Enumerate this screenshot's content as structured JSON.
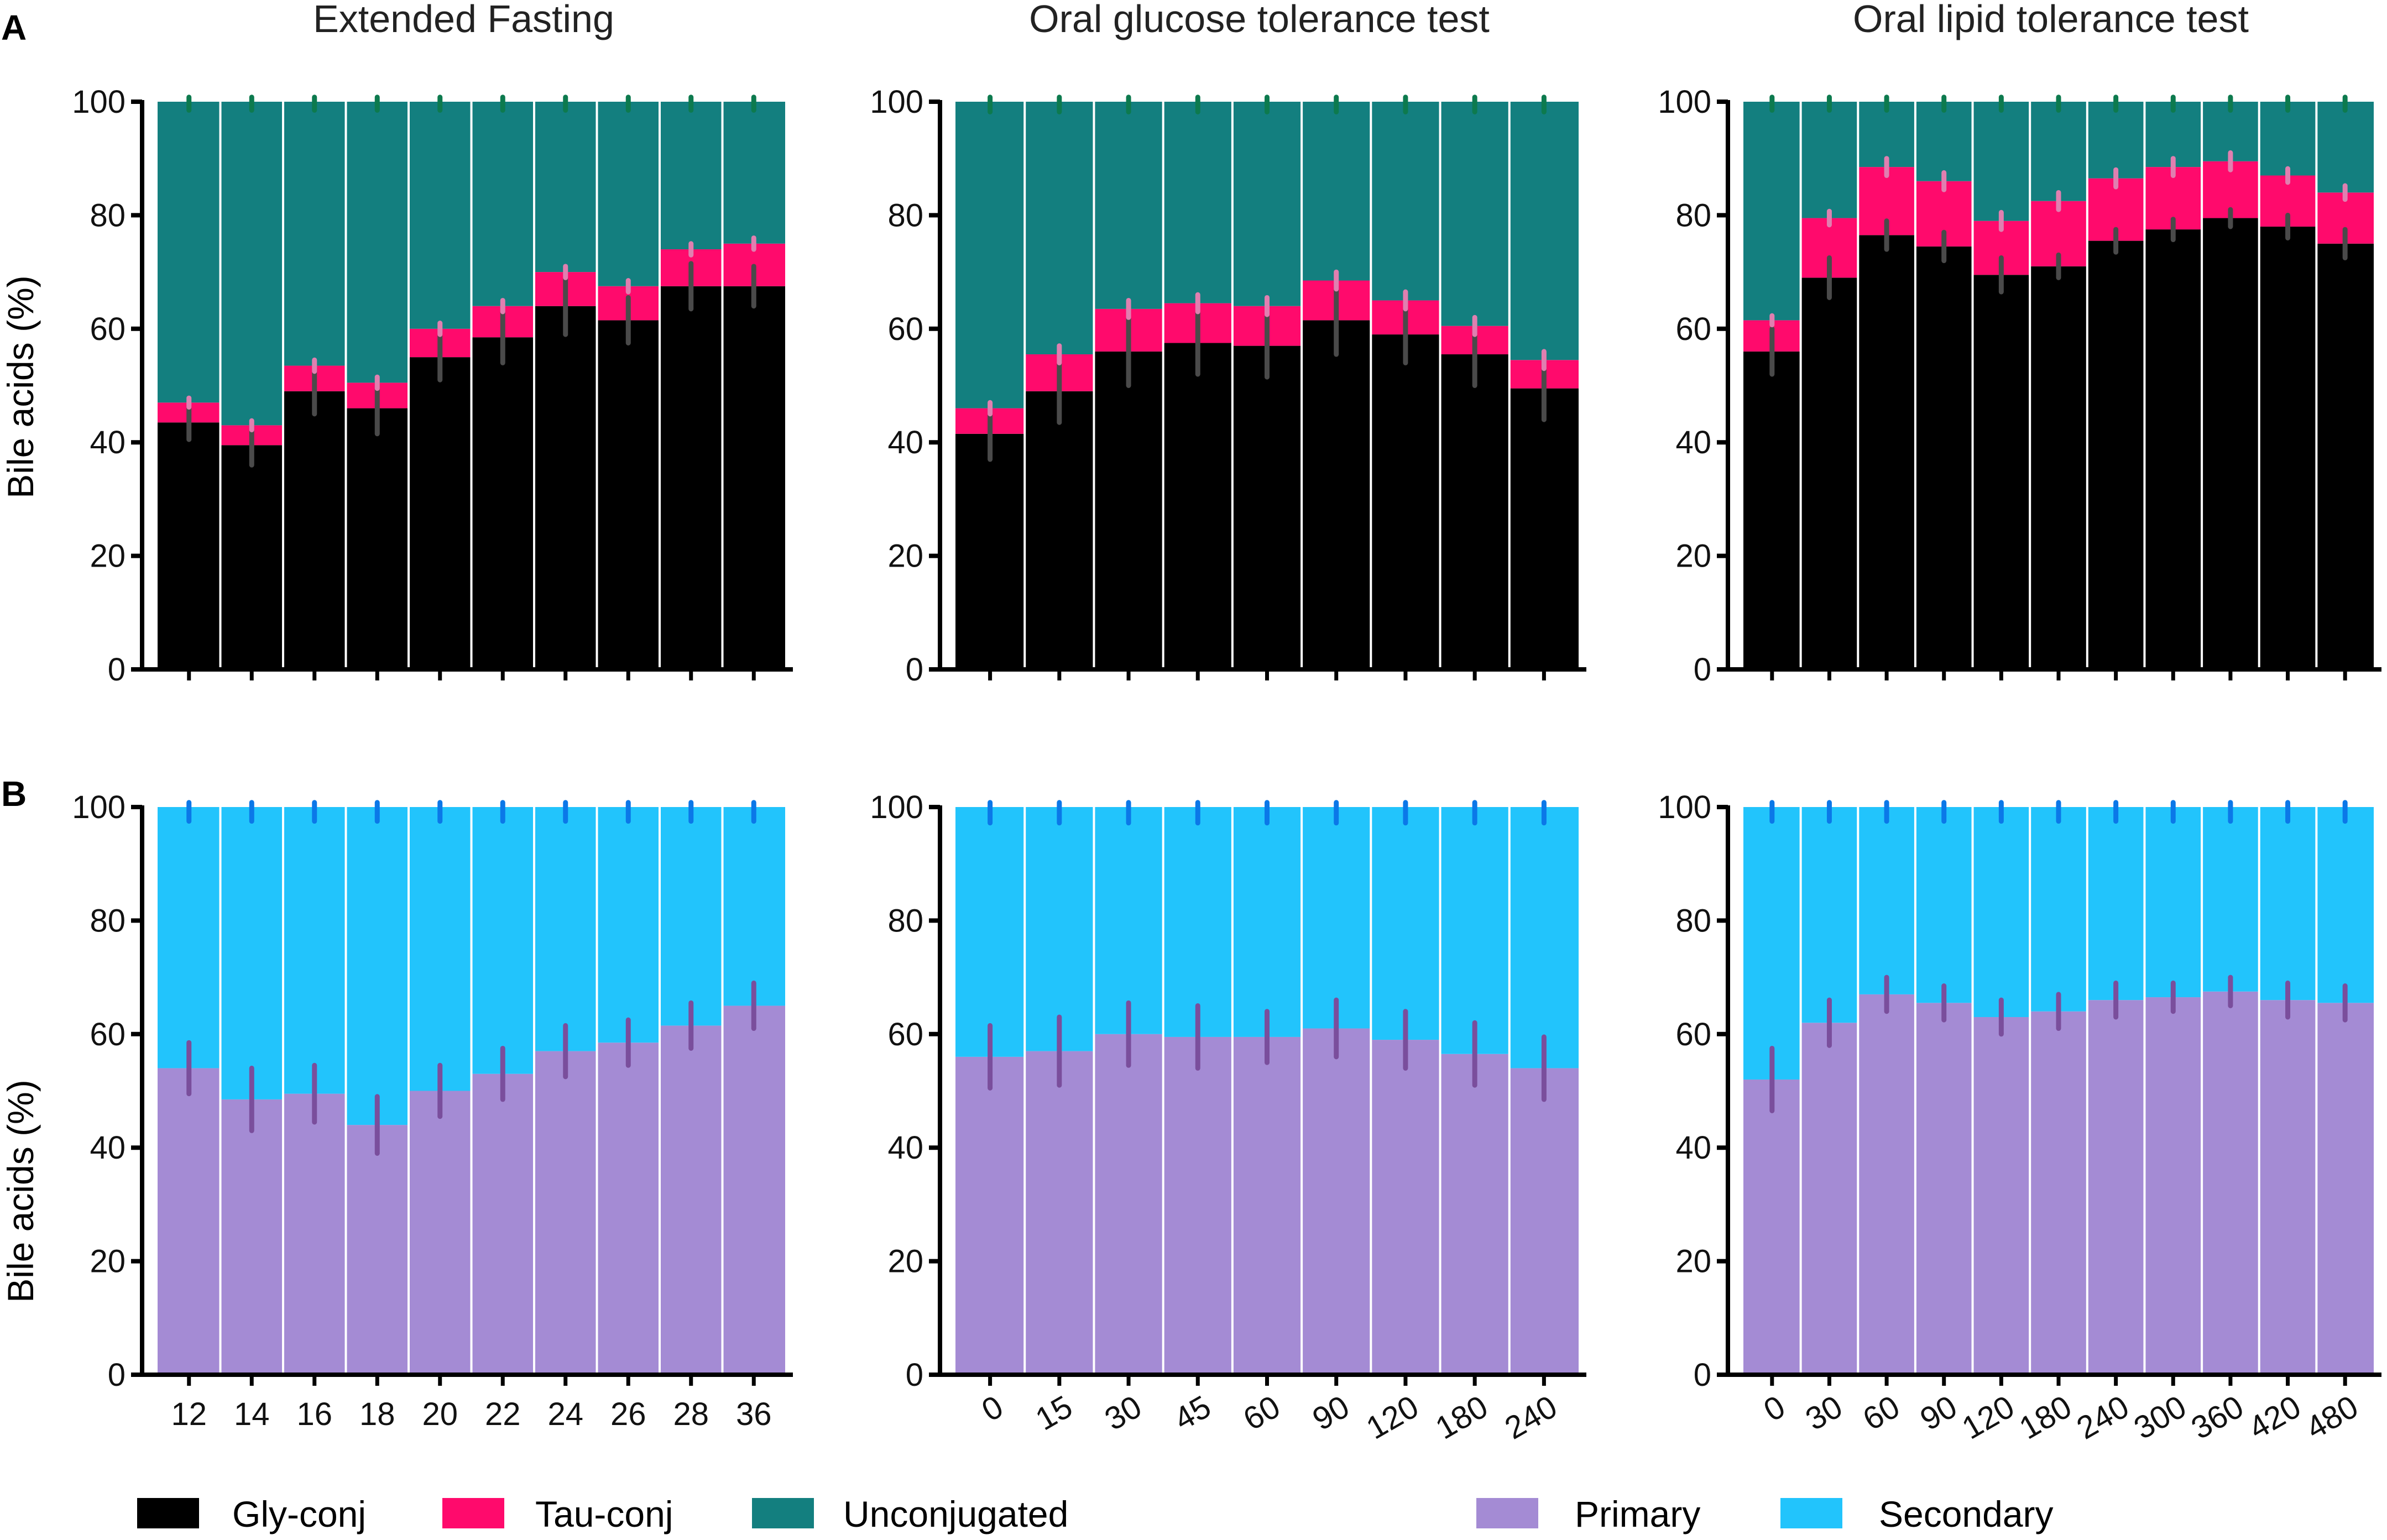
{
  "figure": {
    "panel_labels": [
      "A",
      "B"
    ],
    "row_ylabel": "Bile acids (%)",
    "legends": {
      "conjugation": [
        "Gly-conj",
        "Tau-conj",
        "Unconjugated"
      ],
      "origin": [
        "Primary",
        "Secondary"
      ]
    }
  },
  "colors": {
    "gly": "#000000",
    "tau": "#ff0a6c",
    "unconj": "#137f7f",
    "primary": "#a48bd4",
    "secondary": "#22c4fc",
    "err_gly": "#4a4a4a",
    "err_tau": "#e07fb0",
    "err_unconj": "#0d7a4e",
    "err_primary": "#7a4e9c",
    "err_secondary": "#0b78e8"
  },
  "chart_data": [
    {
      "type": "bar",
      "stacked": true,
      "row": "A",
      "title": "Extended Fasting",
      "ylabel": "Bile acids (%)",
      "ylim": [
        0,
        100
      ],
      "yticks": [
        "0",
        "20",
        "40",
        "60",
        "80",
        "100"
      ],
      "categories": [
        "12",
        "14",
        "16",
        "18",
        "20",
        "22",
        "24",
        "26",
        "28",
        "36"
      ],
      "series": [
        {
          "name": "Gly-conj",
          "values": [
            43.5,
            39.5,
            49,
            46,
            55,
            58.5,
            64,
            61.5,
            67.5,
            67.5
          ],
          "error": [
            3,
            3.5,
            4,
            4.5,
            4,
            4.5,
            5,
            4,
            4,
            3.5
          ]
        },
        {
          "name": "Tau-conj",
          "values": [
            3.5,
            3.5,
            4.5,
            4.5,
            5,
            5.5,
            6,
            6,
            6.5,
            7.5
          ],
          "error": [
            0.8,
            0.8,
            1,
            1,
            1,
            1,
            1,
            1,
            1,
            1
          ]
        },
        {
          "name": "Unconjugated",
          "values": [
            53,
            57,
            46.5,
            49.5,
            40,
            36,
            30,
            32.5,
            26,
            25
          ],
          "error": [
            1.5,
            1.5,
            1.5,
            1.5,
            1.5,
            1.5,
            1.5,
            1.5,
            1.5,
            1.5
          ]
        }
      ]
    },
    {
      "type": "bar",
      "stacked": true,
      "row": "A",
      "title": "Oral glucose tolerance test",
      "ylabel": "Bile acids (%)",
      "ylim": [
        0,
        100
      ],
      "yticks": [
        "0",
        "20",
        "40",
        "60",
        "80",
        "100"
      ],
      "categories": [
        "0",
        "15",
        "30",
        "45",
        "60",
        "90",
        "120",
        "180",
        "240"
      ],
      "series": [
        {
          "name": "Gly-conj",
          "values": [
            41.5,
            49,
            56,
            57.5,
            57,
            61.5,
            59,
            55.5,
            49.5
          ],
          "error": [
            4.5,
            5.5,
            6,
            5.5,
            5.5,
            6,
            5,
            5.5,
            5.5
          ]
        },
        {
          "name": "Tau-conj",
          "values": [
            4.5,
            6.5,
            7.5,
            7,
            7,
            7,
            6,
            5,
            5
          ],
          "error": [
            1,
            1.5,
            1.5,
            1.5,
            1.5,
            1.5,
            1.5,
            1.5,
            1.5
          ]
        },
        {
          "name": "Unconjugated",
          "values": [
            54,
            44.5,
            36.5,
            35.5,
            36,
            31.5,
            35,
            39.5,
            45.5
          ],
          "error": [
            1.8,
            1.8,
            1.8,
            1.8,
            1.8,
            1.8,
            1.8,
            1.8,
            1.8
          ]
        }
      ]
    },
    {
      "type": "bar",
      "stacked": true,
      "row": "A",
      "title": "Oral lipid tolerance test",
      "ylabel": "Bile acids (%)",
      "ylim": [
        0,
        100
      ],
      "yticks": [
        "0",
        "20",
        "40",
        "60",
        "80",
        "100"
      ],
      "categories": [
        "0",
        "30",
        "60",
        "90",
        "120",
        "180",
        "240",
        "300",
        "360",
        "420",
        "480"
      ],
      "series": [
        {
          "name": "Gly-conj",
          "values": [
            56,
            69,
            76.5,
            74.5,
            69.5,
            71,
            75.5,
            77.5,
            79.5,
            78,
            75
          ],
          "error": [
            4,
            3.5,
            2.5,
            2.5,
            3,
            2,
            2,
            1.8,
            1.5,
            2,
            2.5
          ]
        },
        {
          "name": "Tau-conj",
          "values": [
            5.5,
            10.5,
            12,
            11.5,
            9.5,
            11.5,
            11,
            11,
            10,
            9,
            9
          ],
          "error": [
            0.8,
            1.2,
            1.5,
            1.5,
            1.5,
            1.5,
            1.5,
            1.5,
            1.5,
            1.2,
            1.2
          ]
        },
        {
          "name": "Unconjugated",
          "values": [
            38.5,
            20.5,
            11.5,
            14,
            21,
            17.5,
            13.5,
            11.5,
            10.5,
            13,
            16
          ],
          "error": [
            1.5,
            1.5,
            1.5,
            1.5,
            1.5,
            1.5,
            1.5,
            1.5,
            1.5,
            1.5,
            1.5
          ]
        }
      ]
    },
    {
      "type": "bar",
      "stacked": true,
      "row": "B",
      "title": "",
      "ylabel": "Bile acids (%)",
      "ylim": [
        0,
        100
      ],
      "yticks": [
        "0",
        "20",
        "40",
        "60",
        "80",
        "100"
      ],
      "categories": [
        "12",
        "14",
        "16",
        "18",
        "20",
        "22",
        "24",
        "26",
        "28",
        "36"
      ],
      "series": [
        {
          "name": "Primary",
          "values": [
            54,
            48.5,
            49.5,
            44,
            50,
            53,
            57,
            58.5,
            61.5,
            65
          ],
          "error": [
            4.5,
            5.5,
            5,
            5,
            4.5,
            4.5,
            4.5,
            4,
            4,
            4
          ]
        },
        {
          "name": "Secondary",
          "values": [
            46,
            51.5,
            50.5,
            56,
            50,
            47,
            43,
            41.5,
            38.5,
            35
          ],
          "error": [
            2.5,
            2.5,
            2.5,
            2.5,
            2.5,
            2.5,
            2.5,
            2.5,
            2.5,
            2.5
          ]
        }
      ]
    },
    {
      "type": "bar",
      "stacked": true,
      "row": "B",
      "title": "",
      "ylabel": "Bile acids (%)",
      "ylim": [
        0,
        100
      ],
      "yticks": [
        "0",
        "20",
        "40",
        "60",
        "80",
        "100"
      ],
      "categories": [
        "0",
        "15",
        "30",
        "45",
        "60",
        "90",
        "120",
        "180",
        "240"
      ],
      "series": [
        {
          "name": "Primary",
          "values": [
            56,
            57,
            60,
            59.5,
            59.5,
            61,
            59,
            56.5,
            54
          ],
          "error": [
            5.5,
            6,
            5.5,
            5.5,
            4.5,
            5,
            5,
            5.5,
            5.5
          ]
        },
        {
          "name": "Secondary",
          "values": [
            44,
            43,
            40,
            40.5,
            40.5,
            39,
            41,
            43.5,
            46
          ],
          "error": [
            2.8,
            2.8,
            2.8,
            2.8,
            2.8,
            2.8,
            2.8,
            2.8,
            2.8
          ]
        }
      ]
    },
    {
      "type": "bar",
      "stacked": true,
      "row": "B",
      "title": "",
      "ylabel": "Bile acids (%)",
      "ylim": [
        0,
        100
      ],
      "yticks": [
        "0",
        "20",
        "40",
        "60",
        "80",
        "100"
      ],
      "categories": [
        "0",
        "30",
        "60",
        "90",
        "120",
        "180",
        "240",
        "300",
        "360",
        "420",
        "480"
      ],
      "series": [
        {
          "name": "Primary",
          "values": [
            52,
            62,
            67,
            65.5,
            63,
            64,
            66,
            66.5,
            67.5,
            66,
            65.5
          ],
          "error": [
            5.5,
            4,
            3,
            3,
            3,
            3,
            3,
            2.5,
            2.5,
            3,
            3
          ]
        },
        {
          "name": "Secondary",
          "values": [
            48,
            38,
            33,
            34.5,
            37,
            36,
            34,
            33.5,
            32.5,
            34,
            34.5
          ],
          "error": [
            2.5,
            2.5,
            2.5,
            2.5,
            2.5,
            2.5,
            2.5,
            2.5,
            2.5,
            2.5,
            2.5
          ]
        }
      ]
    }
  ]
}
